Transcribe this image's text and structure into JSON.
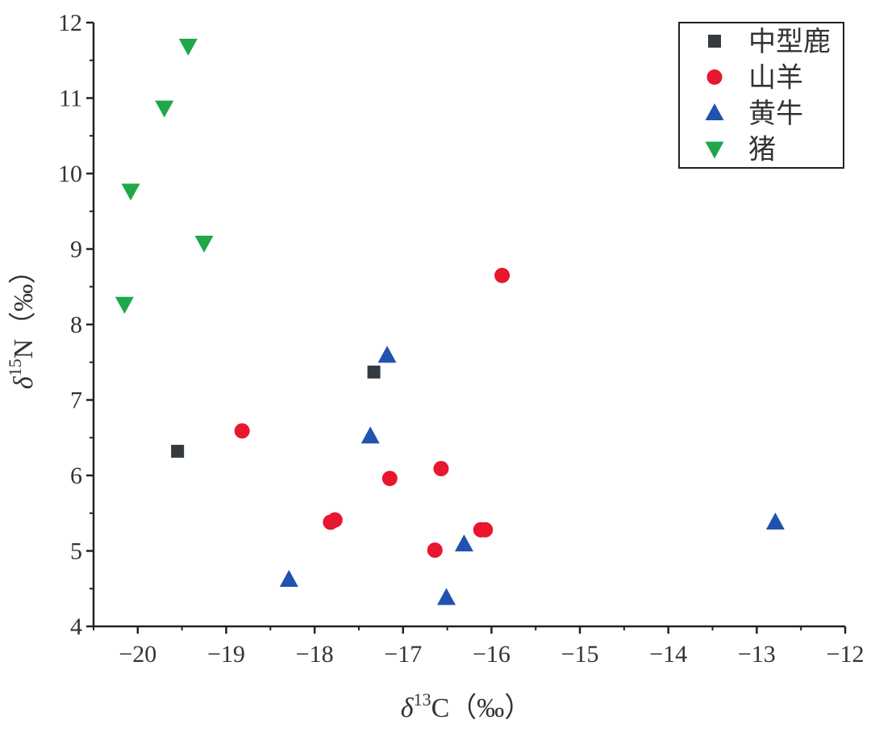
{
  "chart_data": {
    "type": "scatter",
    "title": "",
    "xlabel": {
      "delta": "δ",
      "sup": "13",
      "element": "C",
      "unit": "（‰）"
    },
    "ylabel": {
      "delta": "δ",
      "sup": "15",
      "element": "N",
      "unit": "（‰）"
    },
    "xlim": [
      -20.5,
      -12
    ],
    "ylim": [
      4,
      12
    ],
    "xticks": [
      -20,
      -19,
      -18,
      -17,
      -16,
      -15,
      -14,
      -13,
      -12
    ],
    "xtick_labels": [
      "−20",
      "−19",
      "−18",
      "−17",
      "−16",
      "−15",
      "−14",
      "−13",
      "−12"
    ],
    "yticks": [
      4,
      5,
      6,
      7,
      8,
      9,
      10,
      11,
      12
    ],
    "ytick_labels": [
      "4",
      "5",
      "6",
      "7",
      "8",
      "9",
      "10",
      "11",
      "12"
    ],
    "grid": false,
    "legend_position": "top-right",
    "series": [
      {
        "name": "中型鹿",
        "marker": "square",
        "color": "#333b40",
        "points": [
          {
            "x": -19.55,
            "y": 6.32
          },
          {
            "x": -17.33,
            "y": 7.37
          }
        ]
      },
      {
        "name": "山羊",
        "marker": "circle",
        "color": "#e8162e",
        "points": [
          {
            "x": -18.82,
            "y": 6.59
          },
          {
            "x": -17.82,
            "y": 5.38
          },
          {
            "x": -17.77,
            "y": 5.41
          },
          {
            "x": -17.15,
            "y": 5.96
          },
          {
            "x": -16.57,
            "y": 6.09
          },
          {
            "x": -16.64,
            "y": 5.01
          },
          {
            "x": -16.12,
            "y": 5.28
          },
          {
            "x": -16.07,
            "y": 5.28
          },
          {
            "x": -15.88,
            "y": 8.65
          }
        ]
      },
      {
        "name": "黄牛",
        "marker": "triangle-up",
        "color": "#2152b0",
        "points": [
          {
            "x": -18.29,
            "y": 4.62
          },
          {
            "x": -17.37,
            "y": 6.52
          },
          {
            "x": -17.18,
            "y": 7.59
          },
          {
            "x": -16.51,
            "y": 4.38
          },
          {
            "x": -16.31,
            "y": 5.09
          },
          {
            "x": -12.79,
            "y": 5.38
          }
        ]
      },
      {
        "name": "猪",
        "marker": "triangle-down",
        "color": "#1fa84a",
        "points": [
          {
            "x": -20.15,
            "y": 8.27
          },
          {
            "x": -20.08,
            "y": 9.77
          },
          {
            "x": -19.7,
            "y": 10.87
          },
          {
            "x": -19.43,
            "y": 11.69
          },
          {
            "x": -19.25,
            "y": 9.08
          }
        ]
      }
    ]
  }
}
